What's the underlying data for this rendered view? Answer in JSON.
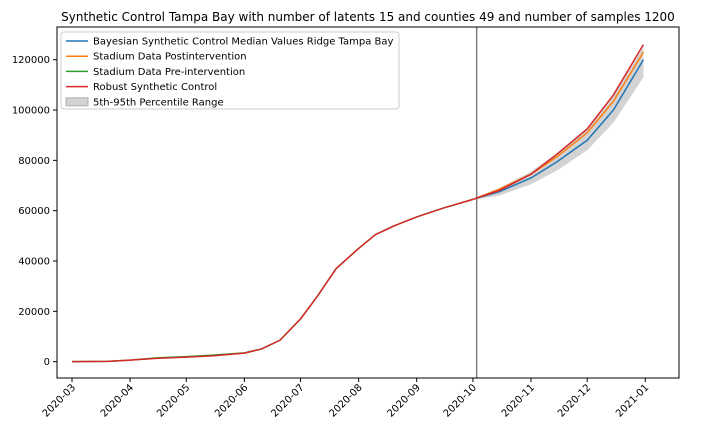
{
  "chart_data": {
    "type": "line",
    "title": "Synthetic Control Tampa Bay with number of latents 15 and counties 49 and number of samples 1200",
    "xlabel": "",
    "ylabel": "",
    "x_range": [
      "2020-02-22",
      "2021-01-19"
    ],
    "ylim": [
      -6500,
      133000
    ],
    "x_ticks": [
      "2020-03",
      "2020-04",
      "2020-05",
      "2020-06",
      "2020-07",
      "2020-08",
      "2020-09",
      "2020-10",
      "2020-11",
      "2020-12",
      "2021-01"
    ],
    "y_ticks": [
      0,
      20000,
      40000,
      60000,
      80000,
      100000,
      120000
    ],
    "y_tick_labels": [
      "0",
      "20000",
      "40000",
      "60000",
      "80000",
      "100000",
      "120000"
    ],
    "intervention_date": "2020-10-03",
    "legend_position": "upper-left",
    "grid": false,
    "series": [
      {
        "name": "Bayesian Synthetic Control Median Values Ridge Tampa Bay",
        "color": "#1f77b4",
        "x": [
          "2020-10-03",
          "2020-10-15",
          "2020-11-01",
          "2020-11-15",
          "2020-12-01",
          "2020-12-15",
          "2020-12-31"
        ],
        "y": [
          65000,
          67500,
          73000,
          79500,
          88000,
          100000,
          120000
        ]
      },
      {
        "name": "Stadium Data Postintervention",
        "color": "#ff7f0e",
        "x": [
          "2020-10-03",
          "2020-10-15",
          "2020-11-01",
          "2020-11-15",
          "2020-12-01",
          "2020-12-15",
          "2020-12-31"
        ],
        "y": [
          65000,
          68500,
          74500,
          81500,
          91000,
          103500,
          123000
        ]
      },
      {
        "name": "Stadium Data Pre-intervention",
        "color": "#2ca02c",
        "x": [
          "2020-03-01",
          "2020-03-20",
          "2020-04-01",
          "2020-04-15",
          "2020-05-01",
          "2020-05-15",
          "2020-06-01",
          "2020-06-10",
          "2020-06-20",
          "2020-07-01",
          "2020-07-10",
          "2020-07-20",
          "2020-08-01",
          "2020-08-10",
          "2020-08-20",
          "2020-09-01",
          "2020-09-15",
          "2020-10-01"
        ],
        "y": [
          0,
          100,
          600,
          1500,
          2000,
          2600,
          3500,
          5000,
          8500,
          17000,
          26000,
          37000,
          45000,
          50500,
          54000,
          57500,
          61000,
          64500
        ]
      },
      {
        "name": "Robust Synthetic Control",
        "color": "#d62728",
        "x": [
          "2020-03-01",
          "2020-03-20",
          "2020-04-01",
          "2020-04-15",
          "2020-05-01",
          "2020-05-15",
          "2020-06-01",
          "2020-06-10",
          "2020-06-20",
          "2020-07-01",
          "2020-07-10",
          "2020-07-20",
          "2020-08-01",
          "2020-08-10",
          "2020-08-20",
          "2020-09-01",
          "2020-09-15",
          "2020-10-01",
          "2020-10-15",
          "2020-11-01",
          "2020-11-15",
          "2020-12-01",
          "2020-12-15",
          "2020-12-31"
        ],
        "y": [
          0,
          100,
          600,
          1300,
          1800,
          2300,
          3400,
          5000,
          8500,
          17000,
          26000,
          37000,
          45000,
          50500,
          54000,
          57500,
          61000,
          64500,
          68000,
          74500,
          82500,
          92500,
          106000,
          126000
        ]
      }
    ],
    "band": {
      "name": "5th-95th Percentile Range",
      "color": "#d3d3d3",
      "x": [
        "2020-10-03",
        "2020-10-15",
        "2020-11-01",
        "2020-11-15",
        "2020-12-01",
        "2020-12-15",
        "2020-12-31"
      ],
      "lower": [
        64500,
        66000,
        70500,
        76000,
        84000,
        95000,
        113000
      ],
      "upper": [
        65500,
        69000,
        75500,
        83000,
        93000,
        106000,
        125000
      ]
    }
  }
}
